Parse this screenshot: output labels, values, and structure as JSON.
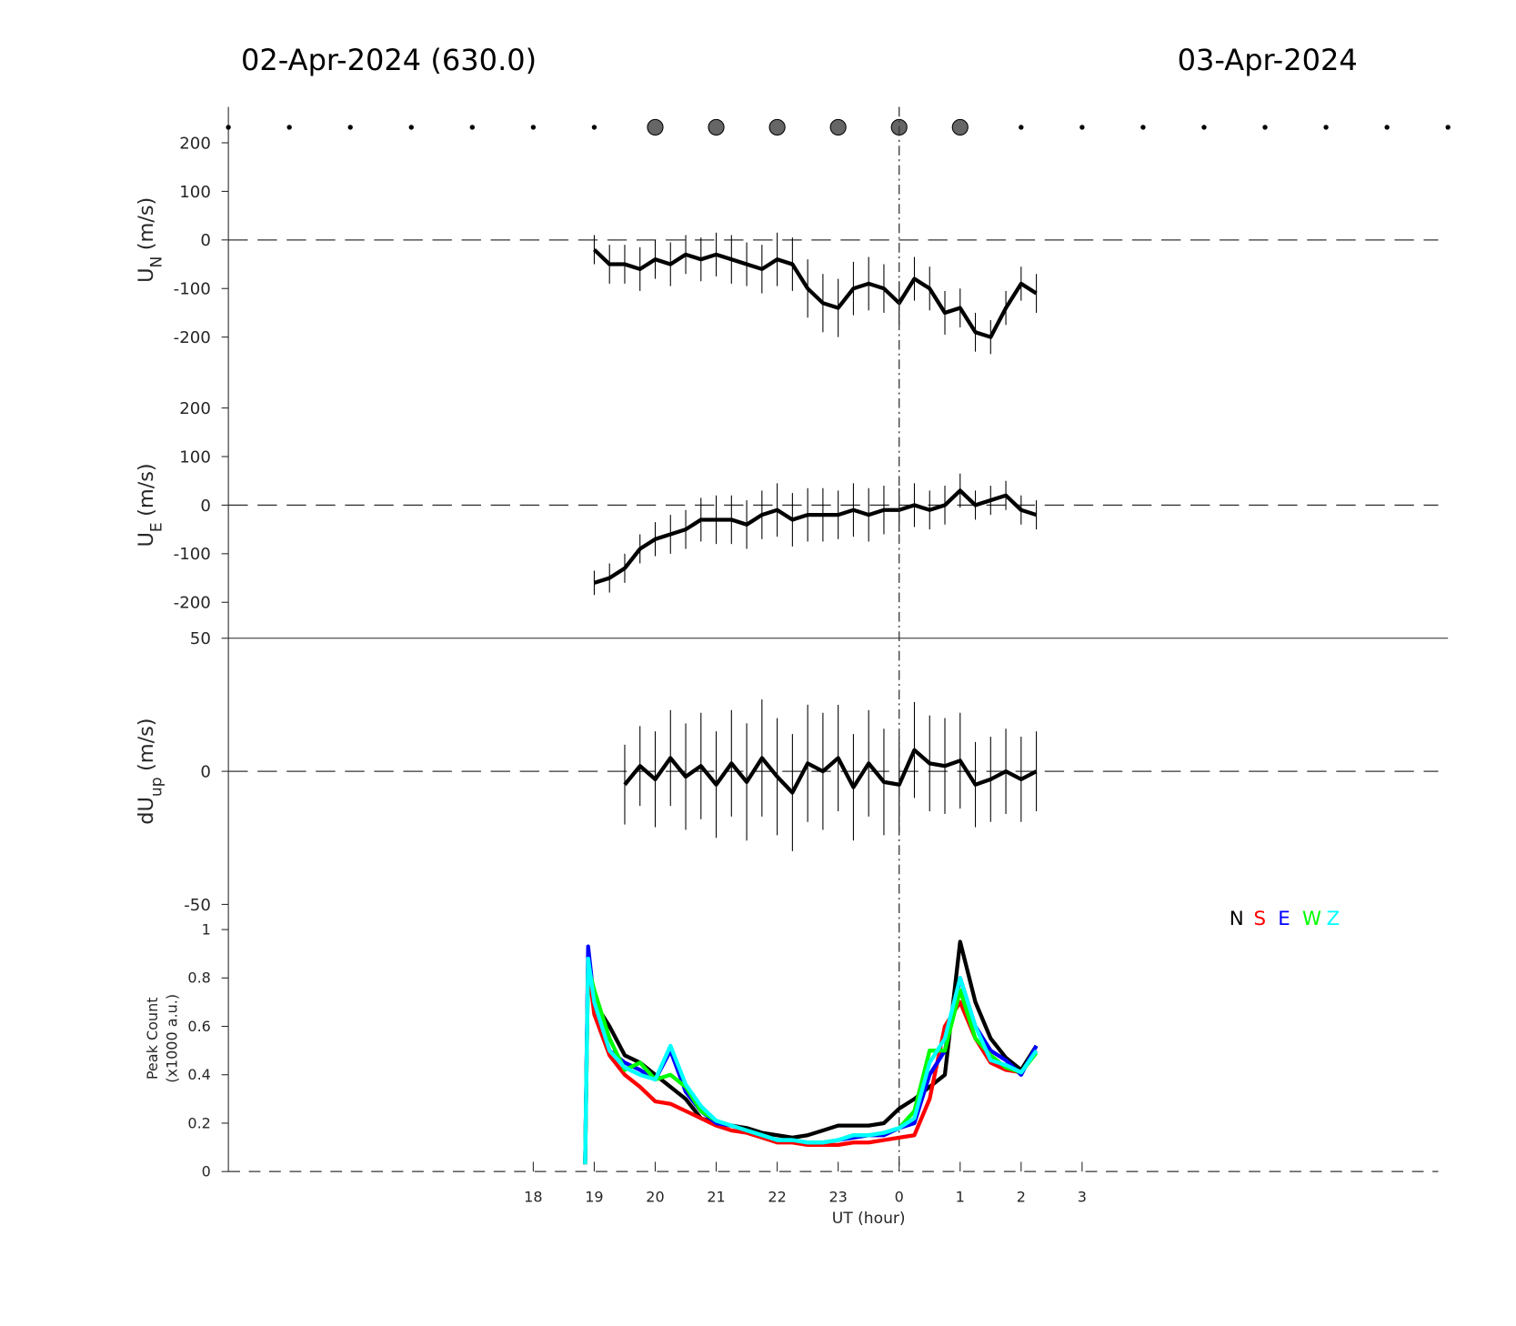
{
  "header": {
    "left_title": "02-Apr-2024 (630.0)",
    "right_title": "03-Apr-2024"
  },
  "chart_data": [
    {
      "type": "line",
      "ylabel": "U",
      "ylabel_sub": "N",
      "ylabel_unit": "(m/s)",
      "xlim": [
        13,
        33
      ],
      "ylim": [
        -274,
        274
      ],
      "yticks": [
        -200,
        -100,
        0,
        100,
        200
      ],
      "markers": {
        "dots": [
          13,
          14,
          15,
          16,
          17,
          18,
          19,
          26,
          27,
          28,
          29,
          30,
          31,
          32,
          33
        ],
        "circles": [
          20,
          21,
          22,
          23,
          24,
          25
        ]
      },
      "x": [
        19.0,
        19.25,
        19.5,
        19.75,
        20.0,
        20.25,
        20.5,
        20.75,
        21.0,
        21.25,
        21.5,
        21.75,
        22.0,
        22.25,
        22.5,
        22.75,
        23.0,
        23.25,
        23.5,
        23.75,
        24.0,
        24.25,
        24.5,
        24.75,
        25.0,
        25.25,
        25.5,
        25.75,
        26.0,
        26.25
      ],
      "series": [
        {
          "color": "#000000",
          "values": [
            -20,
            -50,
            -50,
            -60,
            -40,
            -50,
            -30,
            -40,
            -30,
            -40,
            -50,
            -60,
            -40,
            -50,
            -100,
            -130,
            -140,
            -100,
            -90,
            -100,
            -130,
            -80,
            -100,
            -150,
            -140,
            -190,
            -200,
            -140,
            -90,
            -110
          ],
          "errors": [
            30,
            40,
            40,
            45,
            40,
            45,
            40,
            45,
            45,
            50,
            45,
            50,
            55,
            55,
            60,
            60,
            60,
            55,
            55,
            50,
            45,
            45,
            45,
            45,
            40,
            40,
            35,
            35,
            35,
            40
          ]
        }
      ]
    },
    {
      "type": "line",
      "ylabel": "U",
      "ylabel_sub": "E",
      "ylabel_unit": "(m/s)",
      "xlim": [
        13,
        33
      ],
      "ylim": [
        -274,
        274
      ],
      "yticks": [
        -200,
        -100,
        0,
        100,
        200
      ],
      "x": [
        19.0,
        19.25,
        19.5,
        19.75,
        20.0,
        20.25,
        20.5,
        20.75,
        21.0,
        21.25,
        21.5,
        21.75,
        22.0,
        22.25,
        22.5,
        22.75,
        23.0,
        23.25,
        23.5,
        23.75,
        24.0,
        24.25,
        24.5,
        24.75,
        25.0,
        25.25,
        25.5,
        25.75,
        26.0,
        26.25
      ],
      "series": [
        {
          "color": "#000000",
          "values": [
            -160,
            -150,
            -130,
            -90,
            -70,
            -60,
            -50,
            -30,
            -30,
            -30,
            -40,
            -20,
            -10,
            -30,
            -20,
            -20,
            -20,
            -10,
            -20,
            -10,
            -10,
            0,
            -10,
            0,
            30,
            0,
            10,
            20,
            -10,
            -20
          ],
          "errors": [
            25,
            30,
            30,
            30,
            35,
            40,
            40,
            45,
            50,
            50,
            50,
            50,
            55,
            55,
            55,
            55,
            50,
            55,
            55,
            50,
            45,
            45,
            40,
            40,
            35,
            30,
            30,
            30,
            30,
            30
          ]
        }
      ]
    },
    {
      "type": "line",
      "ylabel": "dU",
      "ylabel_sub": "up",
      "ylabel_unit": "(m/s)",
      "xlim": [
        13,
        33
      ],
      "ylim": [
        -50,
        50
      ],
      "yticks": [
        -50,
        0,
        50
      ],
      "x": [
        19.0,
        19.25,
        19.5,
        19.75,
        20.0,
        20.25,
        20.5,
        20.75,
        21.0,
        21.25,
        21.5,
        21.75,
        22.0,
        22.25,
        22.5,
        22.75,
        23.0,
        23.25,
        23.5,
        23.75,
        24.0,
        24.25,
        24.5,
        24.75,
        25.0,
        25.25,
        25.5,
        25.75,
        26.0,
        26.25
      ],
      "series": [
        {
          "color": "#000000",
          "values": [
            null,
            null,
            -5,
            2,
            -3,
            5,
            -2,
            2,
            -5,
            3,
            -4,
            5,
            -2,
            -8,
            3,
            0,
            5,
            -6,
            3,
            -4,
            -5,
            8,
            3,
            2,
            4,
            -5,
            -3,
            0,
            -3,
            0
          ],
          "errors": [
            null,
            null,
            15,
            15,
            18,
            18,
            20,
            20,
            20,
            20,
            22,
            22,
            22,
            22,
            22,
            22,
            20,
            20,
            20,
            20,
            18,
            18,
            18,
            18,
            18,
            16,
            16,
            16,
            16,
            15
          ]
        }
      ]
    },
    {
      "type": "line",
      "ylabel": "Peak Count",
      "ylabel2": "(x1000 a.u.)",
      "xlabel": "UT (hour)",
      "xlim": [
        13,
        33
      ],
      "ylim": [
        0,
        1.1
      ],
      "yticks": [
        0,
        0.2,
        0.4,
        0.6,
        0.8,
        1
      ],
      "xticks": [
        18,
        19,
        20,
        21,
        22,
        23,
        {
          "value": 24,
          "label": "0"
        },
        {
          "value": 25,
          "label": "1"
        },
        {
          "value": 26,
          "label": "2"
        },
        {
          "value": 27,
          "label": "3"
        }
      ],
      "day_boundary": 24,
      "legend": "upper right",
      "x": [
        18.85,
        18.9,
        19.0,
        19.25,
        19.5,
        19.75,
        20.0,
        20.25,
        20.5,
        20.75,
        21.0,
        21.25,
        21.5,
        21.75,
        22.0,
        22.25,
        22.5,
        22.75,
        23.0,
        23.25,
        23.5,
        23.75,
        24.0,
        24.25,
        24.5,
        24.75,
        25.0,
        25.25,
        25.5,
        25.75,
        26.0,
        26.25
      ],
      "series": [
        {
          "name": "N",
          "color": "#000000",
          "values": [
            0.03,
            0.9,
            0.7,
            0.6,
            0.48,
            0.45,
            0.4,
            0.35,
            0.3,
            0.22,
            0.2,
            0.19,
            0.18,
            0.16,
            0.15,
            0.14,
            0.15,
            0.17,
            0.19,
            0.19,
            0.19,
            0.2,
            0.26,
            0.3,
            0.35,
            0.4,
            0.95,
            0.7,
            0.55,
            0.47,
            0.42,
            0.52
          ]
        },
        {
          "name": "S",
          "color": "#ff0000",
          "values": [
            0.03,
            0.85,
            0.65,
            0.48,
            0.4,
            0.35,
            0.29,
            0.28,
            0.25,
            0.22,
            0.19,
            0.17,
            0.16,
            0.14,
            0.12,
            0.12,
            0.11,
            0.11,
            0.11,
            0.12,
            0.12,
            0.13,
            0.14,
            0.15,
            0.3,
            0.6,
            0.7,
            0.55,
            0.45,
            0.42,
            0.41,
            0.5
          ]
        },
        {
          "name": "E",
          "color": "#0000ff",
          "values": [
            0.03,
            0.93,
            0.7,
            0.5,
            0.45,
            0.42,
            0.38,
            0.5,
            0.33,
            0.25,
            0.2,
            0.19,
            0.17,
            0.15,
            0.13,
            0.13,
            0.12,
            0.12,
            0.13,
            0.14,
            0.15,
            0.15,
            0.18,
            0.2,
            0.4,
            0.5,
            0.8,
            0.6,
            0.5,
            0.46,
            0.4,
            0.52
          ]
        },
        {
          "name": "W",
          "color": "#00ff00",
          "values": [
            0.03,
            0.85,
            0.75,
            0.55,
            0.42,
            0.45,
            0.38,
            0.4,
            0.35,
            0.25,
            0.21,
            0.19,
            0.17,
            0.15,
            0.13,
            0.13,
            0.12,
            0.12,
            0.13,
            0.15,
            0.15,
            0.16,
            0.18,
            0.25,
            0.5,
            0.5,
            0.75,
            0.55,
            0.48,
            0.43,
            0.41,
            0.49
          ]
        },
        {
          "name": "Z",
          "color": "#00ffff",
          "values": [
            0.03,
            0.88,
            0.7,
            0.5,
            0.43,
            0.4,
            0.38,
            0.52,
            0.36,
            0.27,
            0.21,
            0.19,
            0.17,
            0.15,
            0.13,
            0.13,
            0.12,
            0.12,
            0.13,
            0.15,
            0.15,
            0.16,
            0.18,
            0.22,
            0.45,
            0.55,
            0.8,
            0.6,
            0.46,
            0.44,
            0.41,
            0.5
          ]
        }
      ]
    }
  ]
}
